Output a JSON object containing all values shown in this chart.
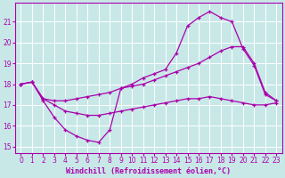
{
  "bg_color": "#c8e8e8",
  "grid_color": "#ffffff",
  "line_color": "#aa00aa",
  "marker": "+",
  "markersize": 3,
  "linewidth": 0.9,
  "xlim": [
    -0.5,
    23.5
  ],
  "ylim": [
    14.7,
    21.9
  ],
  "xticks": [
    0,
    1,
    2,
    3,
    4,
    5,
    6,
    7,
    8,
    9,
    10,
    11,
    12,
    13,
    14,
    15,
    16,
    17,
    18,
    19,
    20,
    21,
    22,
    23
  ],
  "yticks": [
    15,
    16,
    17,
    18,
    19,
    20,
    21
  ],
  "xlabel": "Windchill (Refroidissement éolien,°C)",
  "xlabel_fontsize": 6.0,
  "tick_fontsize": 5.5,
  "line1_x": [
    0,
    1,
    2,
    3,
    4,
    5,
    6,
    7,
    8,
    9,
    10,
    11,
    12,
    13,
    14,
    15,
    16,
    17,
    18,
    19,
    20,
    21,
    22,
    23
  ],
  "line1_y": [
    18.0,
    18.1,
    17.2,
    16.4,
    15.8,
    15.5,
    15.3,
    15.2,
    15.8,
    17.8,
    18.0,
    18.3,
    18.5,
    18.7,
    19.5,
    20.8,
    21.2,
    21.5,
    21.2,
    21.0,
    19.7,
    18.9,
    17.5,
    17.2
  ],
  "line2_x": [
    0,
    1,
    2,
    3,
    4,
    5,
    6,
    7,
    8,
    9,
    10,
    11,
    12,
    13,
    14,
    15,
    16,
    17,
    18,
    19,
    20,
    21,
    22,
    23
  ],
  "line2_y": [
    18.0,
    18.1,
    17.3,
    17.2,
    17.2,
    17.3,
    17.4,
    17.5,
    17.6,
    17.8,
    17.9,
    18.0,
    18.2,
    18.4,
    18.6,
    18.8,
    19.0,
    19.3,
    19.6,
    19.8,
    19.8,
    19.0,
    17.6,
    17.2
  ],
  "line3_x": [
    0,
    1,
    2,
    3,
    4,
    5,
    6,
    7,
    8,
    9,
    10,
    11,
    12,
    13,
    14,
    15,
    16,
    17,
    18,
    19,
    20,
    21,
    22,
    23
  ],
  "line3_y": [
    18.0,
    18.1,
    17.3,
    17.0,
    16.7,
    16.6,
    16.5,
    16.5,
    16.6,
    16.7,
    16.8,
    16.9,
    17.0,
    17.1,
    17.2,
    17.3,
    17.3,
    17.4,
    17.3,
    17.2,
    17.1,
    17.0,
    17.0,
    17.1
  ]
}
